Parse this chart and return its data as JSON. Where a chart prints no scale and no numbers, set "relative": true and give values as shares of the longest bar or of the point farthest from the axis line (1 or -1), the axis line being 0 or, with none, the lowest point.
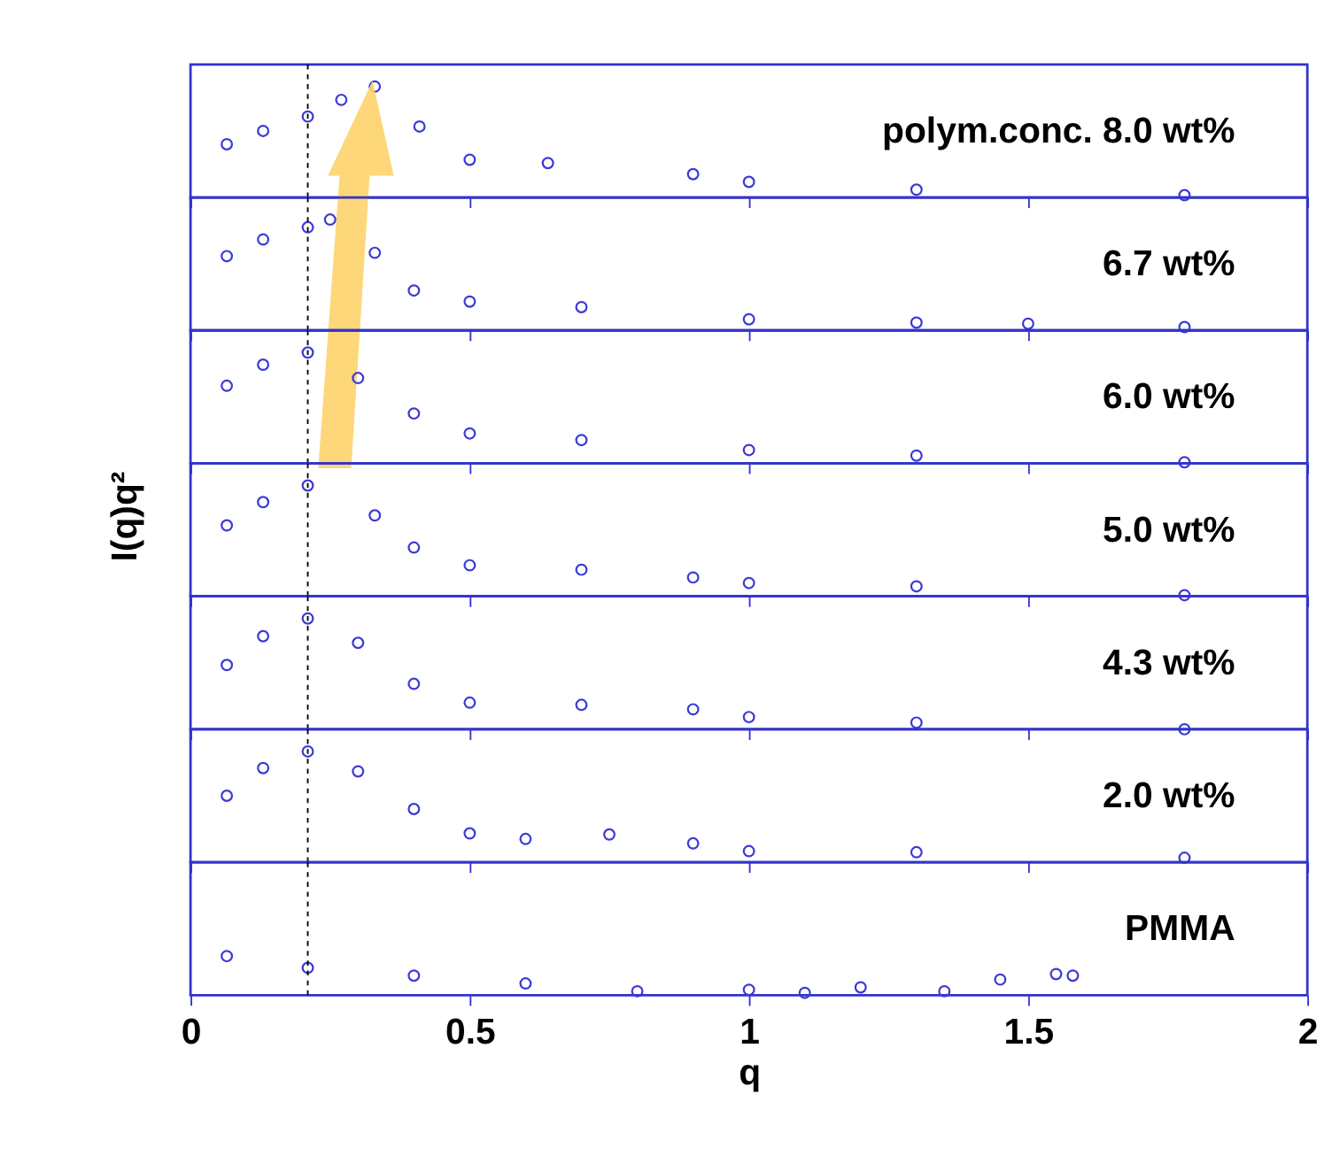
{
  "chart_data": [
    {
      "type": "scatter",
      "relative": true,
      "marker": "circle",
      "tick_labels": false,
      "xlim": [
        0,
        2
      ],
      "xticks": [
        {
          "value": 0,
          "label": null
        },
        {
          "value": 0.5,
          "label": null
        },
        {
          "value": 1,
          "label": null
        },
        {
          "value": 1.5,
          "label": null
        },
        {
          "value": 2,
          "label": null
        }
      ],
      "annotations": [
        "polym.conc. 8.0 wt%"
      ],
      "ref_lines": [
        {
          "axis": "x",
          "value": 0.21,
          "color": "#000000",
          "line_style": "dashed"
        }
      ],
      "x": [
        0.065,
        0.13,
        0.21,
        0.27,
        0.33,
        0.41,
        0.5,
        0.64,
        0.9,
        1.0,
        1.3,
        1.78
      ],
      "series": [
        {
          "color": "#3b3bd6",
          "values": [
            0.48,
            0.6,
            0.73,
            0.88,
            1,
            0.64,
            0.34,
            0.31,
            0.21,
            0.14,
            0.07,
            0.02
          ]
        }
      ]
    },
    {
      "type": "scatter",
      "relative": true,
      "marker": "circle",
      "tick_labels": false,
      "xlim": [
        0,
        2
      ],
      "xticks": [
        {
          "value": 0,
          "label": null
        },
        {
          "value": 0.5,
          "label": null
        },
        {
          "value": 1,
          "label": null
        },
        {
          "value": 1.5,
          "label": null
        },
        {
          "value": 2,
          "label": null
        }
      ],
      "annotations": [
        "6.7 wt%"
      ],
      "ref_lines": [
        {
          "axis": "x",
          "value": 0.21,
          "color": "#000000",
          "line_style": "dashed"
        }
      ],
      "x": [
        0.065,
        0.13,
        0.21,
        0.25,
        0.33,
        0.4,
        0.5,
        0.7,
        1.0,
        1.3,
        1.5,
        1.78
      ],
      "series": [
        {
          "color": "#3b3bd6",
          "values": [
            0.67,
            0.82,
            0.93,
            1,
            0.7,
            0.36,
            0.26,
            0.21,
            0.1,
            0.07,
            0.06,
            0.03
          ]
        }
      ]
    },
    {
      "type": "scatter",
      "relative": true,
      "marker": "circle",
      "tick_labels": false,
      "xlim": [
        0,
        2
      ],
      "xticks": [
        {
          "value": 0,
          "label": null
        },
        {
          "value": 0.5,
          "label": null
        },
        {
          "value": 1,
          "label": null
        },
        {
          "value": 1.5,
          "label": null
        },
        {
          "value": 2,
          "label": null
        }
      ],
      "annotations": [
        "6.0 wt%"
      ],
      "ref_lines": [
        {
          "axis": "x",
          "value": 0.21,
          "color": "#000000",
          "line_style": "dashed"
        }
      ],
      "x": [
        0.065,
        0.13,
        0.21,
        0.3,
        0.4,
        0.5,
        0.7,
        1.0,
        1.3,
        1.78
      ],
      "series": [
        {
          "color": "#3b3bd6",
          "values": [
            0.7,
            0.89,
            1,
            0.77,
            0.45,
            0.27,
            0.21,
            0.12,
            0.07,
            0.01
          ]
        }
      ]
    },
    {
      "type": "scatter",
      "relative": true,
      "marker": "circle",
      "tick_labels": false,
      "xlim": [
        0,
        2
      ],
      "xticks": [
        {
          "value": 0,
          "label": null
        },
        {
          "value": 0.5,
          "label": null
        },
        {
          "value": 1,
          "label": null
        },
        {
          "value": 1.5,
          "label": null
        },
        {
          "value": 2,
          "label": null
        }
      ],
      "ylabel": "I(q)q²",
      "annotations": [
        "5.0 wt%"
      ],
      "ref_lines": [
        {
          "axis": "x",
          "value": 0.21,
          "color": "#000000",
          "line_style": "dashed"
        }
      ],
      "x": [
        0.065,
        0.13,
        0.21,
        0.33,
        0.4,
        0.5,
        0.7,
        0.9,
        1.0,
        1.3,
        1.78
      ],
      "series": [
        {
          "color": "#3b3bd6",
          "values": [
            0.64,
            0.85,
            1,
            0.73,
            0.44,
            0.28,
            0.24,
            0.17,
            0.12,
            0.09,
            0.01
          ]
        }
      ]
    },
    {
      "type": "scatter",
      "relative": true,
      "marker": "circle",
      "tick_labels": false,
      "xlim": [
        0,
        2
      ],
      "xticks": [
        {
          "value": 0,
          "label": null
        },
        {
          "value": 0.5,
          "label": null
        },
        {
          "value": 1,
          "label": null
        },
        {
          "value": 1.5,
          "label": null
        },
        {
          "value": 2,
          "label": null
        }
      ],
      "annotations": [
        "4.3 wt%"
      ],
      "ref_lines": [
        {
          "axis": "x",
          "value": 0.21,
          "color": "#000000",
          "line_style": "dashed"
        }
      ],
      "x": [
        0.065,
        0.13,
        0.21,
        0.3,
        0.4,
        0.5,
        0.7,
        0.9,
        1.0,
        1.3,
        1.78
      ],
      "series": [
        {
          "color": "#3b3bd6",
          "values": [
            0.58,
            0.84,
            1,
            0.78,
            0.41,
            0.24,
            0.22,
            0.18,
            0.11,
            0.06,
            0
          ]
        }
      ]
    },
    {
      "type": "scatter",
      "relative": true,
      "marker": "circle",
      "tick_labels": false,
      "xlim": [
        0,
        2
      ],
      "xticks": [
        {
          "value": 0,
          "label": null
        },
        {
          "value": 0.5,
          "label": null
        },
        {
          "value": 1,
          "label": null
        },
        {
          "value": 1.5,
          "label": null
        },
        {
          "value": 2,
          "label": null
        }
      ],
      "annotations": [
        "2.0 wt%"
      ],
      "ref_lines": [
        {
          "axis": "x",
          "value": 0.21,
          "color": "#000000",
          "line_style": "dashed"
        }
      ],
      "x": [
        0.065,
        0.13,
        0.21,
        0.3,
        0.4,
        0.5,
        0.6,
        0.75,
        0.9,
        1.0,
        1.3,
        1.78
      ],
      "series": [
        {
          "color": "#3b3bd6",
          "values": [
            0.6,
            0.85,
            1,
            0.82,
            0.48,
            0.26,
            0.21,
            0.25,
            0.17,
            0.1,
            0.09,
            0.04
          ]
        }
      ]
    },
    {
      "type": "scatter",
      "relative": true,
      "marker": "circle",
      "tick_labels": "x",
      "xlim": [
        0,
        2
      ],
      "xticks": [
        0,
        0.5,
        1,
        1.5,
        2
      ],
      "xlabel": "q",
      "annotations": [
        "PMMA"
      ],
      "ref_lines": [
        {
          "axis": "x",
          "value": 0.21,
          "color": "#000000",
          "line_style": "dashed"
        }
      ],
      "x": [
        0.065,
        0.21,
        0.4,
        0.6,
        0.8,
        1.0,
        1.1,
        1.2,
        1.35,
        1.45,
        1.55,
        1.58
      ],
      "series": [
        {
          "color": "#3b3bd6",
          "values": [
            1,
            0.7,
            0.5,
            0.3,
            0.1,
            0.14,
            0.06,
            0.2,
            0.1,
            0.4,
            0.54,
            0.5
          ]
        }
      ]
    }
  ]
}
